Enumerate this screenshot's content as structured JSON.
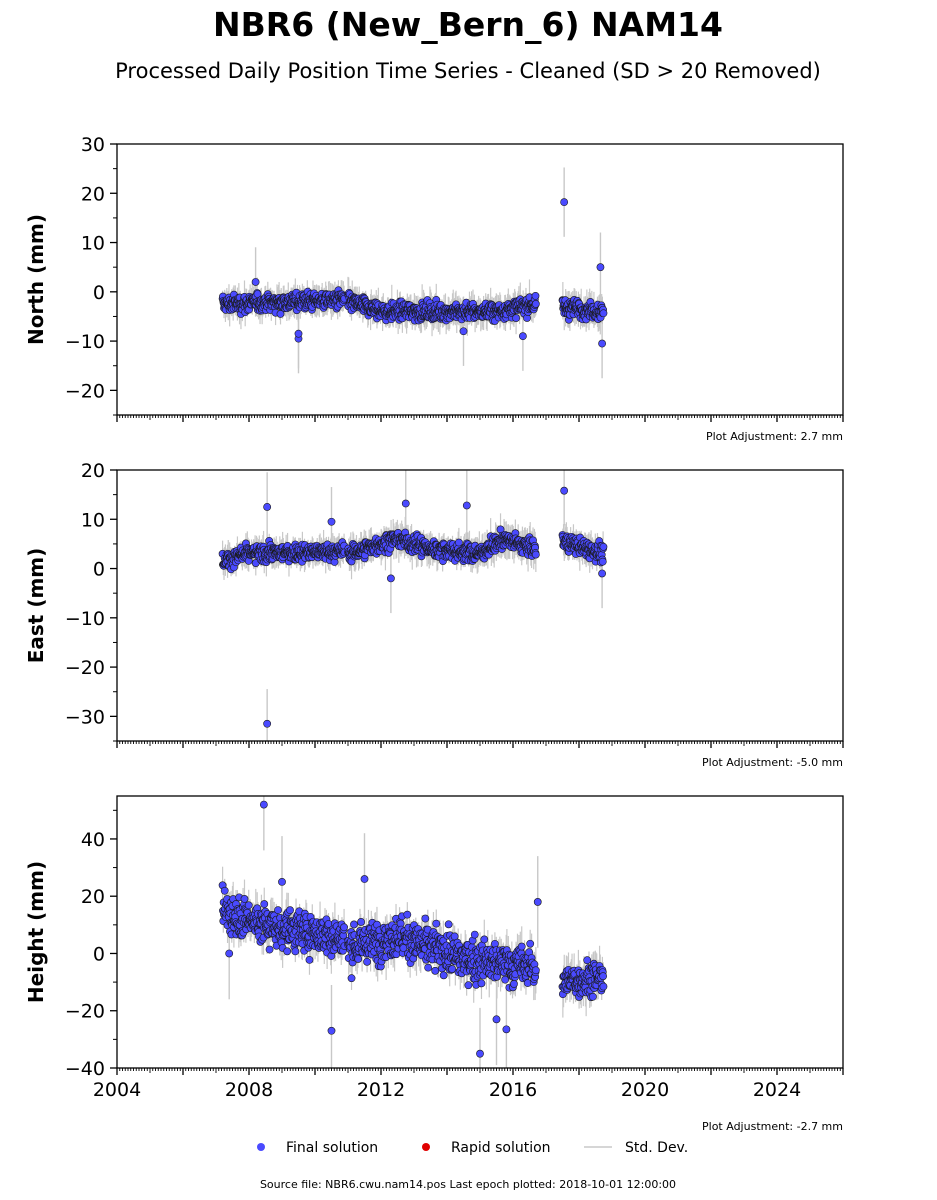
{
  "title": "NBR6 (New_Bern_6) NAM14",
  "subtitle": "Processed Daily Position Time Series - Cleaned (SD > 20 Removed)",
  "footer": "Source file: NBR6.cwu.nam14.pos  Last epoch plotted: 2018-10-01 12:00:00",
  "legend": [
    {
      "label": "Final solution",
      "color": "#4a4aff",
      "kind": "marker"
    },
    {
      "label": "Rapid solution",
      "color": "#e00000",
      "kind": "marker"
    },
    {
      "label": "Std. Dev.",
      "color": "#c8c8c8",
      "kind": "line"
    }
  ],
  "colors": {
    "final": "#4a4aff",
    "rapid": "#e00000",
    "stddev": "#c8c8c8",
    "edge": "#1a1a1a"
  },
  "chart_data": [
    {
      "type": "scatter",
      "ylabel": "North (mm)",
      "ylim": [
        -25,
        30
      ],
      "yticks": [
        -20,
        -10,
        0,
        10,
        20,
        30
      ],
      "yminor": 5,
      "xlim": [
        2004,
        2026
      ],
      "adjustment": "Plot Adjustment: 2.7 mm",
      "segments": [
        {
          "start": 2007.2,
          "end": 2010.9,
          "trend": [
            [
              2007.2,
              -2.5
            ],
            [
              2010.9,
              -1.5
            ]
          ],
          "spread": 1.6,
          "sd": 2.2
        },
        {
          "start": 2011.0,
          "end": 2016.7,
          "trend": [
            [
              2011.0,
              -2.0
            ],
            [
              2012.0,
              -4.0
            ],
            [
              2015.5,
              -4.0
            ],
            [
              2016.7,
              -2.5
            ]
          ],
          "spread": 1.6,
          "sd": 2.4
        },
        {
          "start": 2017.5,
          "end": 2018.75,
          "trend": [
            [
              2017.5,
              -3.0
            ],
            [
              2018.75,
              -4.0
            ]
          ],
          "spread": 1.6,
          "sd": 2.6
        }
      ],
      "outliers": [
        [
          2017.55,
          18.2
        ],
        [
          2018.65,
          5.0
        ],
        [
          2009.5,
          -9.5
        ],
        [
          2009.5,
          -8.5
        ],
        [
          2008.2,
          2.0
        ],
        [
          2018.7,
          -10.5
        ],
        [
          2014.5,
          -8.0
        ],
        [
          2016.3,
          -9.0
        ]
      ]
    },
    {
      "type": "scatter",
      "ylabel": "East (mm)",
      "ylim": [
        -35,
        20
      ],
      "yticks": [
        -30,
        -20,
        -10,
        0,
        10,
        20
      ],
      "yminor": 5,
      "xlim": [
        2004,
        2026
      ],
      "adjustment": "Plot Adjustment: -5.0 mm",
      "segments": [
        {
          "start": 2007.2,
          "end": 2010.9,
          "trend": [
            [
              2007.2,
              1.5
            ],
            [
              2008.0,
              3.0
            ],
            [
              2010.9,
              3.5
            ]
          ],
          "spread": 1.5,
          "sd": 2.2
        },
        {
          "start": 2011.0,
          "end": 2016.7,
          "trend": [
            [
              2011.0,
              3.0
            ],
            [
              2012.5,
              6.0
            ],
            [
              2013.5,
              4.0
            ],
            [
              2015.0,
              3.0
            ],
            [
              2015.7,
              6.0
            ],
            [
              2016.7,
              4.0
            ]
          ],
          "spread": 1.6,
          "sd": 2.4
        },
        {
          "start": 2017.5,
          "end": 2018.75,
          "trend": [
            [
              2017.5,
              5.5
            ],
            [
              2018.75,
              3.0
            ]
          ],
          "spread": 1.5,
          "sd": 2.4
        }
      ],
      "outliers": [
        [
          2008.55,
          12.5
        ],
        [
          2008.55,
          -31.5
        ],
        [
          2012.75,
          13.2
        ],
        [
          2014.6,
          12.8
        ],
        [
          2017.55,
          15.8
        ],
        [
          2018.7,
          -1.0
        ],
        [
          2012.3,
          -2.0
        ],
        [
          2010.5,
          9.5
        ]
      ]
    },
    {
      "type": "scatter",
      "ylabel": "Height (mm)",
      "ylim": [
        -40,
        55
      ],
      "yticks": [
        -40,
        -20,
        0,
        20,
        40
      ],
      "yminor": 10,
      "xlim": [
        2004,
        2026
      ],
      "xticks": [
        2004,
        2008,
        2012,
        2016,
        2020,
        2024
      ],
      "adjustment": "Plot Adjustment: -2.7 mm",
      "segments": [
        {
          "start": 2007.2,
          "end": 2010.9,
          "trend": [
            [
              2007.2,
              15.0
            ],
            [
              2008.5,
              10.0
            ],
            [
              2010.9,
              5.0
            ]
          ],
          "spread": 6.5,
          "sd": 5.0
        },
        {
          "start": 2011.0,
          "end": 2016.7,
          "trend": [
            [
              2011.0,
              2.0
            ],
            [
              2012.5,
              6.0
            ],
            [
              2014.5,
              -2.0
            ],
            [
              2016.7,
              -5.0
            ]
          ],
          "spread": 6.5,
          "sd": 5.5
        },
        {
          "start": 2017.5,
          "end": 2018.75,
          "trend": [
            [
              2017.5,
              -10.0
            ],
            [
              2018.75,
              -8.0
            ]
          ],
          "spread": 5.5,
          "sd": 5.5
        }
      ],
      "outliers": [
        [
          2008.45,
          52.0
        ],
        [
          2010.5,
          -27.0
        ],
        [
          2015.0,
          -35.0
        ],
        [
          2015.8,
          -26.5
        ],
        [
          2015.5,
          -23.0
        ],
        [
          2007.4,
          0.0
        ],
        [
          2009.0,
          25.0
        ],
        [
          2011.5,
          26.0
        ],
        [
          2016.75,
          18.0
        ]
      ]
    }
  ]
}
